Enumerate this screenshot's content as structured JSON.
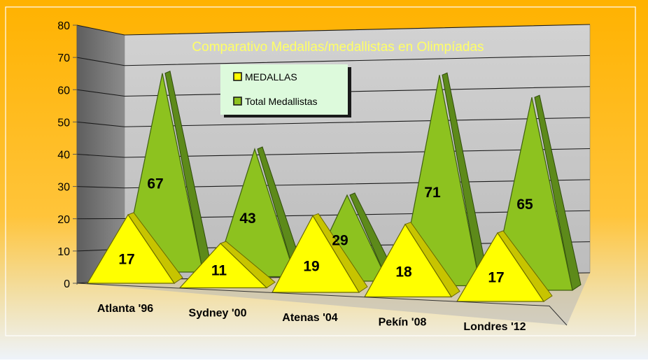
{
  "chart_data": {
    "type": "area",
    "title": "Comparativo Medallas/medallistas en Olimpíadas",
    "categories": [
      "Atlanta '96",
      "Sydney '00",
      "Atenas '04",
      "Pekín '08",
      "Londres '12"
    ],
    "series": [
      {
        "name": "MEDALLAS",
        "values": [
          17,
          11,
          19,
          18,
          17
        ],
        "color": "#ffff00"
      },
      {
        "name": "Total Medallistas",
        "values": [
          67,
          43,
          29,
          71,
          65
        ],
        "color": "#8dc21f"
      }
    ],
    "ylim": [
      0,
      80
    ],
    "yticks": [
      "0",
      "10",
      "20",
      "30",
      "40",
      "50",
      "60",
      "70",
      "80"
    ],
    "grid": true,
    "legend": "top-center",
    "colors": {
      "background_top": "#ffb200",
      "background_bottom": "#eef3fa",
      "back_wall": "#c8c8c8",
      "side_wall": "#7a7a7a",
      "title": "#ffff66",
      "legend_fill": "#ddfadc"
    }
  }
}
